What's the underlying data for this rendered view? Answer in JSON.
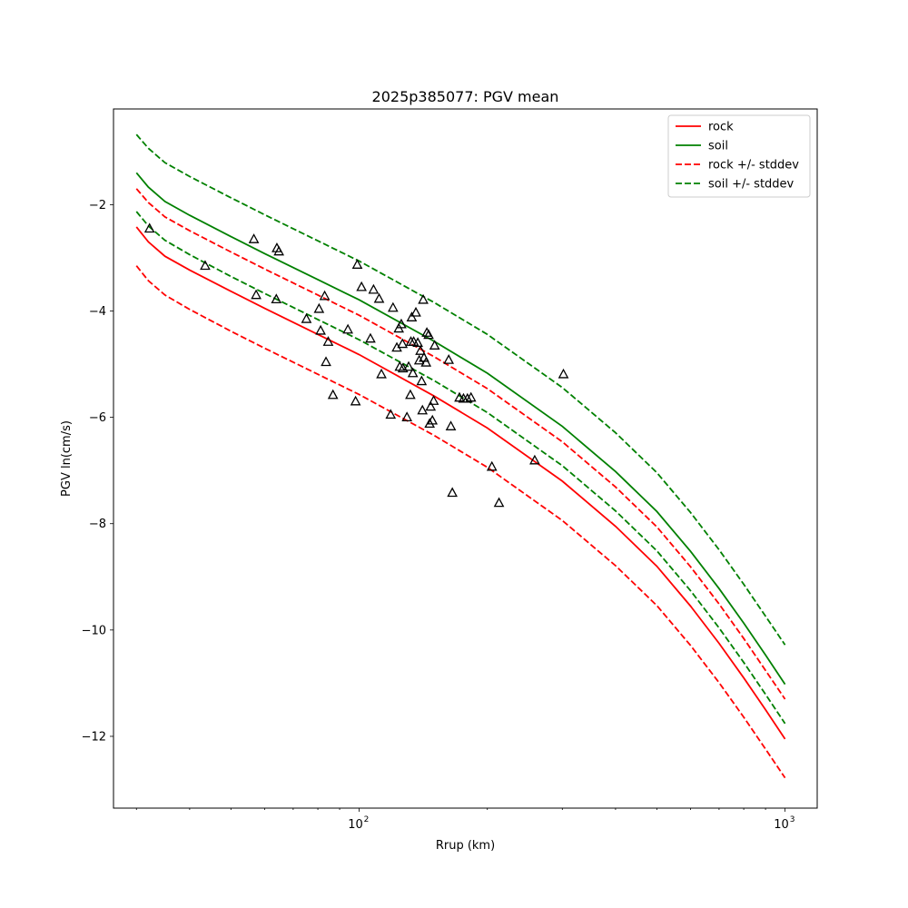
{
  "chart_data": {
    "type": "line",
    "title": "2025p385077: PGV mean",
    "xlabel": "Rrup (km)",
    "ylabel": "PGV ln(cm/s)",
    "xscale": "log",
    "xlim": [
      26.5,
      1190
    ],
    "ylim": [
      -13.35,
      -0.2
    ],
    "grid": false,
    "legend_position": "top-right",
    "x_ticks": [
      {
        "value": 100,
        "label": "10",
        "exp": "2"
      },
      {
        "value": 1000,
        "label": "10",
        "exp": "3"
      }
    ],
    "y_ticks": [
      {
        "value": -2,
        "label": "−2"
      },
      {
        "value": -4,
        "label": "−4"
      },
      {
        "value": -6,
        "label": "−6"
      },
      {
        "value": -8,
        "label": "−8"
      },
      {
        "value": -10,
        "label": "−10"
      },
      {
        "value": -12,
        "label": "−12"
      }
    ],
    "x": [
      30,
      32,
      35,
      40,
      50,
      60,
      80,
      100,
      150,
      200,
      300,
      400,
      500,
      600,
      700,
      800,
      900,
      1000
    ],
    "series": [
      {
        "name": "rock",
        "color": "#ff0000",
        "dash": false,
        "values": [
          -2.42,
          -2.7,
          -2.97,
          -3.23,
          -3.63,
          -3.95,
          -4.44,
          -4.82,
          -5.6,
          -6.2,
          -7.2,
          -8.05,
          -8.8,
          -9.55,
          -10.25,
          -10.9,
          -11.5,
          -12.05
        ]
      },
      {
        "name": "soil",
        "color": "#008000",
        "dash": false,
        "values": [
          -1.4,
          -1.67,
          -1.94,
          -2.2,
          -2.6,
          -2.92,
          -3.41,
          -3.79,
          -4.57,
          -5.17,
          -6.17,
          -7.02,
          -7.77,
          -8.52,
          -9.22,
          -9.87,
          -10.47,
          -11.02
        ]
      },
      {
        "name": "rock +/- stddev",
        "color": "#ff0000",
        "dash": true,
        "values": [
          -1.7,
          -1.96,
          -2.23,
          -2.49,
          -2.89,
          -3.21,
          -3.7,
          -4.08,
          -4.86,
          -5.46,
          -6.46,
          -7.31,
          -8.06,
          -8.81,
          -9.51,
          -10.16,
          -10.76,
          -11.3
        ]
      },
      {
        "name": "rock +/- stddev",
        "color": "#ff0000",
        "dash": true,
        "show_in_legend": false,
        "values": [
          -3.15,
          -3.43,
          -3.7,
          -3.97,
          -4.38,
          -4.7,
          -5.19,
          -5.57,
          -6.34,
          -6.94,
          -7.94,
          -8.79,
          -9.54,
          -10.29,
          -10.99,
          -11.64,
          -12.24,
          -12.78
        ]
      },
      {
        "name": "soil +/- stddev",
        "color": "#008000",
        "dash": true,
        "values": [
          -0.68,
          -0.94,
          -1.21,
          -1.47,
          -1.87,
          -2.19,
          -2.68,
          -3.06,
          -3.84,
          -4.44,
          -5.44,
          -6.29,
          -7.04,
          -7.79,
          -8.49,
          -9.14,
          -9.74,
          -10.28
        ]
      },
      {
        "name": "soil +/- stddev",
        "color": "#008000",
        "dash": true,
        "show_in_legend": false,
        "values": [
          -2.13,
          -2.4,
          -2.67,
          -2.94,
          -3.35,
          -3.67,
          -4.16,
          -4.54,
          -5.31,
          -5.91,
          -6.91,
          -7.76,
          -8.51,
          -9.26,
          -9.96,
          -10.61,
          -11.21,
          -11.76
        ]
      }
    ],
    "observations": {
      "marker": "triangle-open",
      "color": "#000000",
      "points": [
        [
          32.2,
          -2.45
        ],
        [
          43.5,
          -3.15
        ],
        [
          56.6,
          -2.65
        ],
        [
          57.3,
          -3.7
        ],
        [
          63.9,
          -3.78
        ],
        [
          64.1,
          -2.82
        ],
        [
          64.8,
          -2.88
        ],
        [
          75.2,
          -4.15
        ],
        [
          80.5,
          -3.96
        ],
        [
          81.2,
          -4.37
        ],
        [
          83.0,
          -3.72
        ],
        [
          83.6,
          -4.96
        ],
        [
          84.6,
          -4.58
        ],
        [
          86.8,
          -5.58
        ],
        [
          94.1,
          -4.35
        ],
        [
          98.1,
          -5.7
        ],
        [
          99.0,
          -3.13
        ],
        [
          101.3,
          -3.55
        ],
        [
          106.3,
          -4.52
        ],
        [
          108.1,
          -3.6
        ],
        [
          111.4,
          -3.77
        ],
        [
          112.8,
          -5.19
        ],
        [
          118.6,
          -5.95
        ],
        [
          120.1,
          -3.94
        ],
        [
          122.6,
          -4.69
        ],
        [
          123.9,
          -4.33
        ],
        [
          124.6,
          -5.05
        ],
        [
          125.6,
          -4.25
        ],
        [
          126.4,
          -4.62
        ],
        [
          126.7,
          -5.08
        ],
        [
          129.5,
          -6.0
        ],
        [
          130.7,
          -5.05
        ],
        [
          131.9,
          -5.58
        ],
        [
          132.3,
          -4.58
        ],
        [
          132.9,
          -4.12
        ],
        [
          133.7,
          -5.17
        ],
        [
          134.3,
          -4.58
        ],
        [
          135.9,
          -4.03
        ],
        [
          137.3,
          -4.6
        ],
        [
          138.4,
          -4.93
        ],
        [
          139.3,
          -4.75
        ],
        [
          140.2,
          -5.32
        ],
        [
          140.8,
          -5.87
        ],
        [
          141.4,
          -3.79
        ],
        [
          142.0,
          -4.88
        ],
        [
          143.6,
          -4.97
        ],
        [
          144.2,
          -4.41
        ],
        [
          145.6,
          -4.45
        ],
        [
          146.4,
          -6.12
        ],
        [
          147.2,
          -5.8
        ],
        [
          148.6,
          -6.06
        ],
        [
          149.6,
          -5.69
        ],
        [
          150.4,
          -4.65
        ],
        [
          162.3,
          -4.92
        ],
        [
          164.2,
          -6.17
        ],
        [
          165.5,
          -7.42
        ],
        [
          172.0,
          -5.63
        ],
        [
          175.8,
          -5.65
        ],
        [
          179.6,
          -5.65
        ],
        [
          183.1,
          -5.63
        ],
        [
          205.0,
          -6.93
        ],
        [
          213.0,
          -7.61
        ],
        [
          258.4,
          -6.81
        ],
        [
          301.8,
          -5.19
        ]
      ]
    }
  }
}
